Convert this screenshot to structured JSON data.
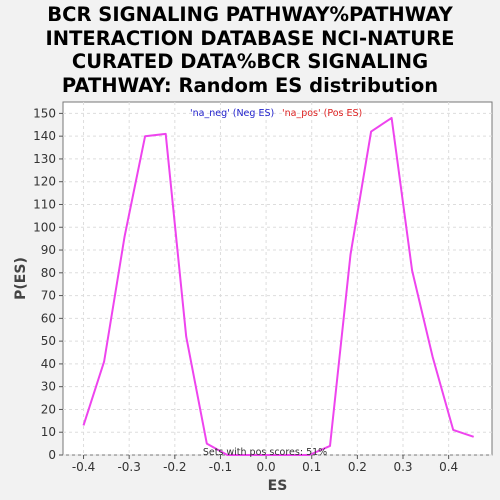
{
  "chart_data": {
    "type": "line",
    "title_lines": [
      "BCR SIGNALING PATHWAY%PATHWAY",
      "INTERACTION DATABASE NCI-NATURE",
      "CURATED DATA%BCR SIGNALING",
      "PATHWAY: Random ES distribution"
    ],
    "xlabel": "ES",
    "ylabel": "P(ES)",
    "xlim": [
      -0.445,
      0.495
    ],
    "ylim": [
      0,
      155
    ],
    "x_ticks": [
      -0.4,
      -0.3,
      -0.2,
      -0.1,
      0.0,
      0.1,
      0.2,
      0.3,
      0.4
    ],
    "x_tick_labels": [
      "-0.4",
      "-0.3",
      "-0.2",
      "-0.1",
      "0.0",
      "0.1",
      "0.2",
      "0.3",
      "0.4"
    ],
    "y_ticks": [
      0,
      10,
      20,
      30,
      40,
      50,
      60,
      70,
      80,
      90,
      100,
      110,
      120,
      130,
      140,
      150
    ],
    "grid": true,
    "legend": [
      {
        "label": "'na_neg' (Neg ES)",
        "color": "#2222cc"
      },
      {
        "label": "'na_pos' (Pos ES)",
        "color": "#dd2222"
      }
    ],
    "legend_position": "top-center",
    "annotation": "Sets with pos scores: 51%",
    "line_color": "#ee44ee",
    "series": [
      {
        "x": [
          -0.4,
          -0.355,
          -0.31,
          -0.265,
          -0.22,
          -0.175,
          -0.13,
          -0.085,
          -0.04,
          0.005,
          0.05,
          0.095,
          0.14,
          0.185,
          0.23,
          0.275,
          0.32,
          0.365,
          0.41,
          0.455
        ],
        "y": [
          13,
          41,
          96,
          140,
          141,
          52,
          5,
          0,
          0,
          0,
          0,
          0,
          4,
          88,
          142,
          148,
          81,
          43,
          11,
          8
        ]
      }
    ]
  }
}
